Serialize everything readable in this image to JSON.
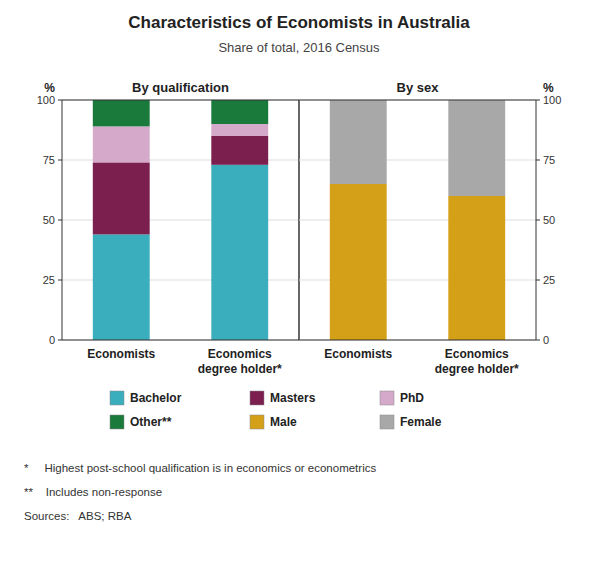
{
  "title": "Characteristics of Economists in Australia",
  "subtitle": "Share of total, 2016 Census",
  "annotations": [
    "*     Highest post-school qualification is in economics or econometrics",
    "**    Includes non-response",
    "Sources:   ABS; RBA"
  ],
  "chart_data": [
    {
      "type": "bar",
      "stacked": true,
      "title": "By qualification",
      "y_label": "%",
      "categories": [
        "Economists",
        "Economics\ndegree holder*"
      ],
      "series": [
        {
          "name": "Bachelor",
          "color": "#3AAEBC",
          "values": [
            44,
            73
          ]
        },
        {
          "name": "Masters",
          "color": "#7B1F4E",
          "values": [
            30,
            12
          ]
        },
        {
          "name": "PhD",
          "color": "#D4A9C9",
          "values": [
            15,
            5
          ]
        },
        {
          "name": "Other**",
          "color": "#1A7A3C",
          "values": [
            11,
            10
          ]
        }
      ],
      "ylim": [
        0,
        100
      ],
      "yticks": [
        0,
        25,
        50,
        75,
        100
      ],
      "grid": true,
      "legend": "bottom"
    },
    {
      "type": "bar",
      "stacked": true,
      "title": "By sex",
      "y_label": "%",
      "categories": [
        "Economists",
        "Economics\ndegree holder*"
      ],
      "series": [
        {
          "name": "Male",
          "color": "#D4A017",
          "values": [
            65,
            60
          ]
        },
        {
          "name": "Female",
          "color": "#A8A8A8",
          "values": [
            35,
            40
          ]
        }
      ],
      "ylim": [
        0,
        100
      ],
      "yticks": [
        0,
        25,
        50,
        75,
        100
      ],
      "grid": true,
      "legend": "bottom"
    }
  ]
}
